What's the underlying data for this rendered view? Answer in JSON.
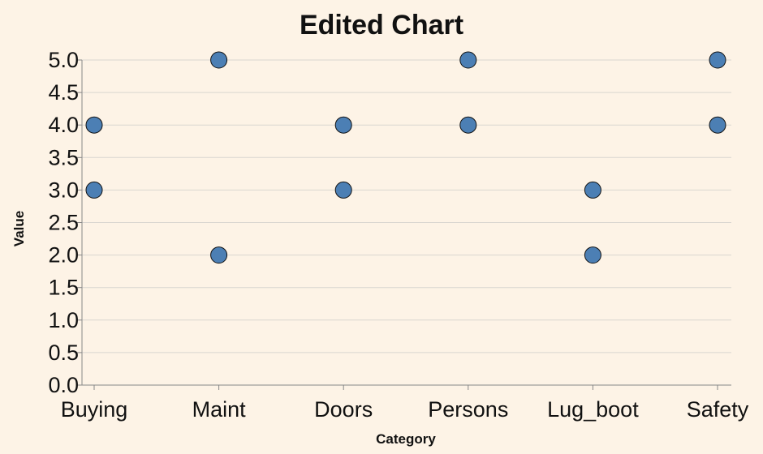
{
  "chart_data": {
    "type": "scatter",
    "title": "Edited Chart",
    "xlabel": "Category",
    "ylabel": "Value",
    "categories": [
      "Buying",
      "Maint",
      "Doors",
      "Persons",
      "Lug_boot",
      "Safety"
    ],
    "ylim": [
      0,
      5
    ],
    "yticks": [
      "0.0",
      "0.5",
      "1.0",
      "1.5",
      "2.0",
      "2.5",
      "3.0",
      "3.5",
      "4.0",
      "4.5",
      "5.0"
    ],
    "points": [
      {
        "x": "Buying",
        "y": 4
      },
      {
        "x": "Buying",
        "y": 3
      },
      {
        "x": "Maint",
        "y": 5
      },
      {
        "x": "Maint",
        "y": 2
      },
      {
        "x": "Doors",
        "y": 4
      },
      {
        "x": "Doors",
        "y": 3
      },
      {
        "x": "Persons",
        "y": 5
      },
      {
        "x": "Persons",
        "y": 4
      },
      {
        "x": "Lug_boot",
        "y": 3
      },
      {
        "x": "Lug_boot",
        "y": 2
      },
      {
        "x": "Safety",
        "y": 5
      },
      {
        "x": "Safety",
        "y": 4
      }
    ],
    "grid": true,
    "colors": {
      "point": "#4c7fb4",
      "background": "#fdf3e6"
    }
  }
}
